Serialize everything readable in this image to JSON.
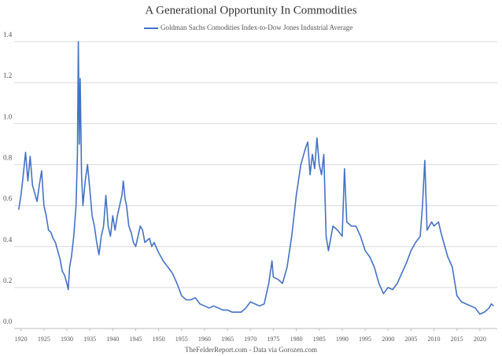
{
  "chart_data": {
    "type": "line",
    "title": "A Generational Opportunity In Commodities",
    "source": "TheFelderReport.com - Data via Gorozen.com",
    "series": [
      {
        "name": "Goldman Sachs Comodities Index-to-Dow Jones Industrial Average",
        "color": "#4472c4",
        "x": [
          1919.5,
          1920,
          1920.5,
          1921,
          1921.5,
          1922,
          1922.5,
          1923,
          1923.5,
          1924,
          1924.5,
          1925,
          1925.5,
          1926,
          1926.5,
          1927,
          1927.5,
          1928,
          1928.5,
          1929,
          1929.5,
          1930,
          1930.3,
          1930.6,
          1931,
          1931.5,
          1932,
          1932.3,
          1932.5,
          1932.7,
          1932.9,
          1933.2,
          1933.5,
          1934,
          1934.5,
          1935,
          1935.5,
          1936,
          1936.5,
          1937,
          1937.5,
          1938,
          1938.5,
          1939,
          1939.5,
          1940,
          1940.5,
          1941,
          1941.5,
          1942,
          1942.3,
          1942.7,
          1943,
          1943.5,
          1944,
          1944.5,
          1945,
          1945.5,
          1946,
          1946.5,
          1947,
          1948,
          1948.5,
          1949,
          1950,
          1951,
          1952,
          1953,
          1954,
          1955,
          1956,
          1957,
          1958,
          1959,
          1960,
          1961,
          1962,
          1963,
          1964,
          1965,
          1966,
          1967,
          1968,
          1969,
          1970,
          1971,
          1972,
          1973,
          1974,
          1974.7,
          1975,
          1976,
          1977,
          1978,
          1979,
          1980,
          1981,
          1982,
          1982.5,
          1983,
          1983.5,
          1984,
          1984.5,
          1985,
          1985.5,
          1986,
          1986.5,
          1987,
          1988,
          1989,
          1990,
          1990.5,
          1991,
          1992,
          1993,
          1994,
          1995,
          1996,
          1997,
          1998,
          1999,
          2000,
          2001,
          2002,
          2003,
          2004,
          2005,
          2006,
          2007,
          2007.5,
          2008,
          2008.5,
          2009,
          2009.5,
          2010,
          2011,
          2011.5,
          2012,
          2013,
          2014,
          2015,
          2016,
          2017,
          2018,
          2019,
          2020,
          2021,
          2022,
          2022.5,
          2023
        ],
        "values": [
          0.58,
          0.65,
          0.75,
          0.86,
          0.72,
          0.84,
          0.7,
          0.66,
          0.62,
          0.7,
          0.77,
          0.6,
          0.55,
          0.48,
          0.47,
          0.44,
          0.42,
          0.38,
          0.34,
          0.28,
          0.26,
          0.22,
          0.19,
          0.3,
          0.35,
          0.45,
          0.6,
          0.85,
          1.4,
          0.9,
          1.22,
          0.75,
          0.6,
          0.72,
          0.8,
          0.68,
          0.55,
          0.5,
          0.42,
          0.36,
          0.45,
          0.5,
          0.65,
          0.5,
          0.45,
          0.55,
          0.48,
          0.55,
          0.6,
          0.65,
          0.72,
          0.63,
          0.6,
          0.5,
          0.47,
          0.42,
          0.4,
          0.45,
          0.5,
          0.48,
          0.42,
          0.44,
          0.4,
          0.42,
          0.37,
          0.33,
          0.3,
          0.27,
          0.22,
          0.16,
          0.14,
          0.14,
          0.15,
          0.12,
          0.11,
          0.1,
          0.11,
          0.1,
          0.09,
          0.09,
          0.08,
          0.08,
          0.08,
          0.1,
          0.13,
          0.12,
          0.11,
          0.12,
          0.22,
          0.33,
          0.25,
          0.24,
          0.22,
          0.3,
          0.45,
          0.65,
          0.8,
          0.88,
          0.91,
          0.75,
          0.85,
          0.78,
          0.93,
          0.8,
          0.75,
          0.85,
          0.45,
          0.38,
          0.5,
          0.48,
          0.45,
          0.78,
          0.52,
          0.5,
          0.5,
          0.45,
          0.38,
          0.35,
          0.3,
          0.22,
          0.17,
          0.2,
          0.19,
          0.22,
          0.27,
          0.32,
          0.38,
          0.42,
          0.45,
          0.6,
          0.82,
          0.48,
          0.5,
          0.52,
          0.5,
          0.52,
          0.47,
          0.43,
          0.35,
          0.3,
          0.16,
          0.13,
          0.12,
          0.11,
          0.1,
          0.07,
          0.08,
          0.1,
          0.12,
          0.11
        ]
      }
    ],
    "xlim": [
      1919.2,
      2023.8
    ],
    "xticks": [
      1920,
      1925,
      1930,
      1935,
      1940,
      1945,
      1950,
      1955,
      1960,
      1965,
      1970,
      1975,
      1980,
      1985,
      1990,
      1995,
      2000,
      2005,
      2010,
      2015,
      2020
    ],
    "ylim": [
      0,
      1.4
    ],
    "yticks": [
      {
        "value": 0,
        "label": "0.0"
      },
      0.2,
      0.4,
      0.6,
      0.8,
      {
        "value": 1,
        "label": "1.0"
      },
      1.2,
      1.4
    ],
    "grid": true
  }
}
